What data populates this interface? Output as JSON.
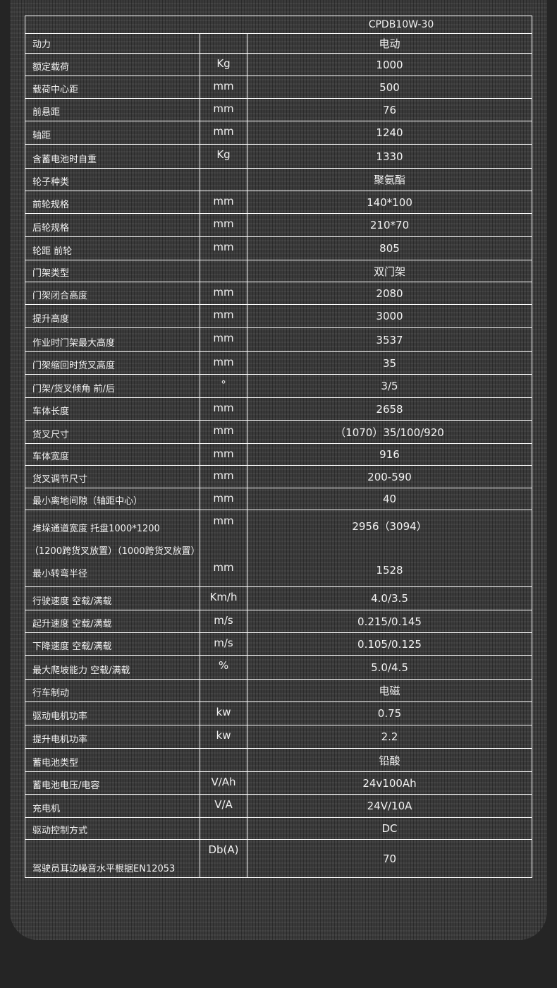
{
  "table": {
    "header": "CPDB10W-30",
    "rows": [
      {
        "label": "动力",
        "unit": "",
        "value": "电动"
      },
      {
        "label": "额定载荷",
        "unit": "Kg",
        "value": "1000"
      },
      {
        "label": "载荷中心距",
        "unit": "mm",
        "value": "500"
      },
      {
        "label": "前悬距",
        "unit": "mm",
        "value": "76"
      },
      {
        "label": "轴距",
        "unit": "mm",
        "value": "1240"
      },
      {
        "label": "含蓄电池时自重",
        "unit": "Kg",
        "value": "1330"
      },
      {
        "label": "轮子种类",
        "unit": "",
        "value": "聚氨酯"
      },
      {
        "label": "前轮规格",
        "unit": "mm",
        "value": "140*100"
      },
      {
        "label": "后轮规格",
        "unit": "mm",
        "value": "210*70"
      },
      {
        "label": "轮距  前轮",
        "unit": "mm",
        "value": "805"
      },
      {
        "label": "门架类型",
        "unit": "",
        "value": "双门架"
      },
      {
        "label": "门架闭合高度",
        "unit": "mm",
        "value": "2080"
      },
      {
        "label": "提升高度",
        "unit": "mm",
        "value": "3000"
      },
      {
        "label": "作业时门架最大高度",
        "unit": "mm",
        "value": "3537"
      },
      {
        "label": "门架缩回时货叉高度",
        "unit": "mm",
        "value": "35"
      },
      {
        "label": "门架/货叉倾角 前/后",
        "unit": "°",
        "value": "3/5"
      },
      {
        "label": "车体长度",
        "unit": "mm",
        "value": "2658"
      },
      {
        "label": "货叉尺寸",
        "unit": "mm",
        "value": "（1070）35/100/920"
      },
      {
        "label": "车体宽度",
        "unit": "mm",
        "value": "916"
      },
      {
        "label": "货叉调节尺寸",
        "unit": "mm",
        "value": "200-590"
      },
      {
        "label": "最小离地间隙（轴距中心）",
        "unit": "mm",
        "value": "40"
      }
    ],
    "combined_row": {
      "label_1": "堆垛通道宽度 托盘1000*1200",
      "unit_1": "mm",
      "value_1": "2956（3094）",
      "label_2": "（1200跨货叉放置）（1000跨货叉放置）",
      "label_3": "最小转弯半径",
      "unit_3": "mm",
      "value_3": "1528"
    },
    "rows_after": [
      {
        "label": "行驶速度  空载/满载",
        "unit": "Km/h",
        "value": "4.0/3.5"
      },
      {
        "label": "起升速度  空载/满载",
        "unit": "m/s",
        "value": "0.215/0.145"
      },
      {
        "label": "下降速度  空载/满载",
        "unit": "m/s",
        "value": "0.105/0.125"
      },
      {
        "label": "最大爬坡能力  空载/满载",
        "unit": "%",
        "value": "5.0/4.5"
      },
      {
        "label": "行车制动",
        "unit": "",
        "value": "电磁"
      },
      {
        "label": "驱动电机功率",
        "unit": "kw",
        "value": "0.75"
      },
      {
        "label": "提升电机功率",
        "unit": "kw",
        "value": "2.2"
      },
      {
        "label": "蓄电池类型",
        "unit": "",
        "value": "铅酸"
      },
      {
        "label": "蓄电池电压/电容",
        "unit": "V/Ah",
        "value": "24v100Ah"
      },
      {
        "label": "充电机",
        "unit": "V/A",
        "value": "24V/10A"
      },
      {
        "label": "驱动控制方式",
        "unit": "",
        "value": "DC"
      },
      {
        "label": "驾驶员耳边噪音水平根据EN12053",
        "unit": "Db(A)",
        "value": "70"
      }
    ]
  }
}
